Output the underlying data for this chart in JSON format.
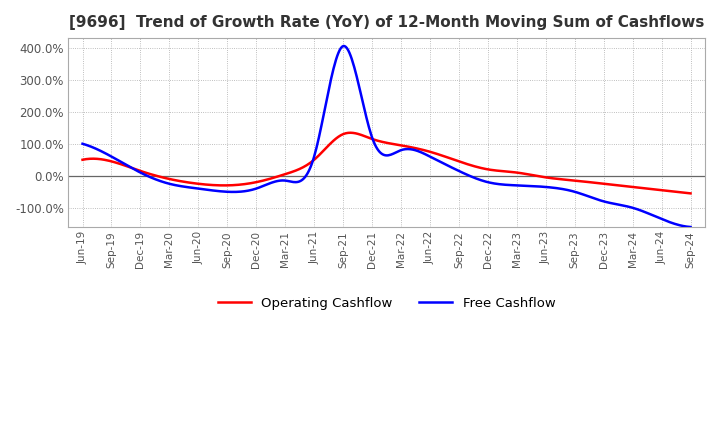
{
  "title": "[9696]  Trend of Growth Rate (YoY) of 12-Month Moving Sum of Cashflows",
  "title_fontsize": 11,
  "title_color": "#333333",
  "background_color": "#ffffff",
  "plot_bg_color": "#ffffff",
  "ylim": [
    -160,
    430
  ],
  "yticks": [
    -100,
    0,
    100,
    200,
    300,
    400
  ],
  "ytick_labels": [
    "-100.0%",
    "0.0%",
    "100.0%",
    "200.0%",
    "300.0%",
    "400.0%"
  ],
  "x_labels": [
    "Jun-19",
    "Sep-19",
    "Dec-19",
    "Mar-20",
    "Jun-20",
    "Sep-20",
    "Dec-20",
    "Mar-21",
    "Jun-21",
    "Sep-21",
    "Dec-21",
    "Mar-22",
    "Jun-22",
    "Sep-22",
    "Dec-22",
    "Mar-23",
    "Jun-23",
    "Sep-23",
    "Dec-23",
    "Mar-24",
    "Jun-24",
    "Sep-24"
  ],
  "operating_cashflow_color": "#ff0000",
  "free_cashflow_color": "#0000ff",
  "operating_cashflow": [
    50,
    45,
    15,
    -10,
    -25,
    -30,
    -20,
    5,
    50,
    130,
    115,
    95,
    75,
    45,
    20,
    10,
    -5,
    -15,
    -25,
    -35,
    -45,
    -55
  ],
  "free_cashflow": [
    100,
    60,
    10,
    -25,
    -40,
    -50,
    -40,
    -15,
    60,
    405,
    120,
    80,
    60,
    15,
    -20,
    -30,
    -35,
    -50,
    -80,
    -100,
    -135,
    -160
  ],
  "legend_operating": "Operating Cashflow",
  "legend_free": "Free Cashflow",
  "grid_color": "#aaaaaa",
  "line_width": 1.8
}
